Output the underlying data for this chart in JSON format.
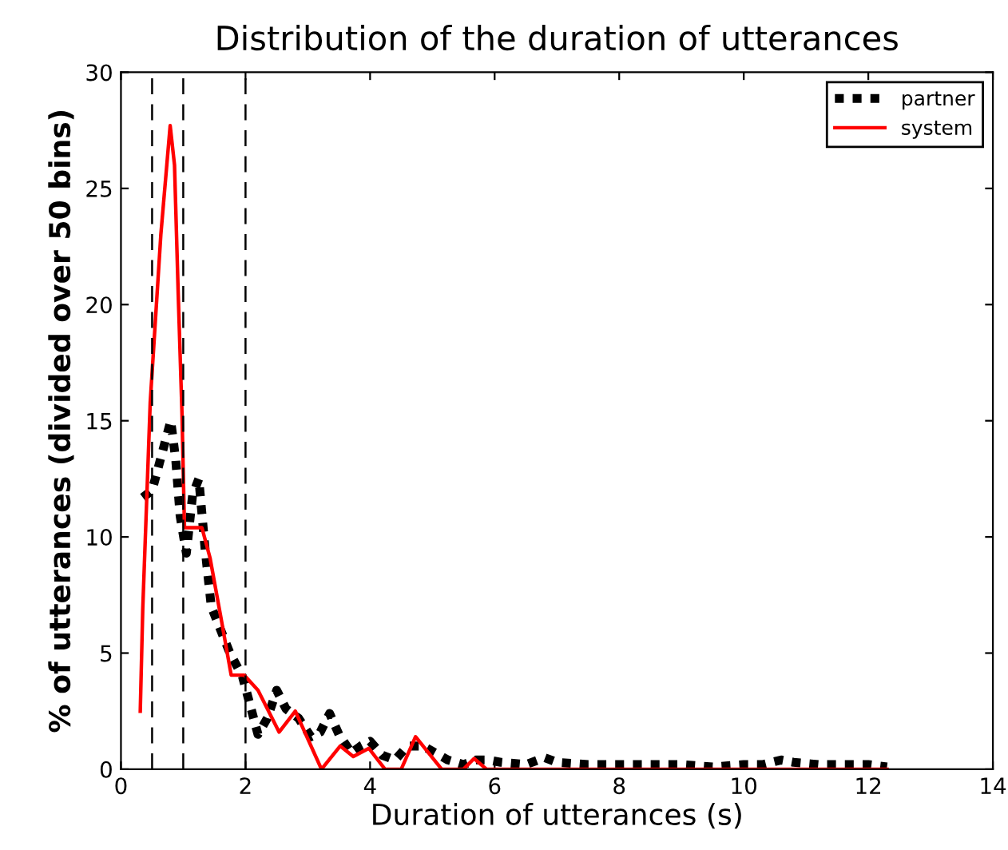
{
  "chart_data": {
    "type": "line",
    "title": "Distribution of the duration of utterances",
    "xlabel": "Duration of utterances (s)",
    "ylabel": "% of utterances (divided over 50 bins)",
    "xlim": [
      0,
      14
    ],
    "ylim": [
      0,
      30
    ],
    "xticks": [
      0,
      2,
      4,
      6,
      8,
      10,
      12,
      14
    ],
    "yticks": [
      0,
      5,
      10,
      15,
      20,
      25,
      30
    ],
    "grid": false,
    "legend": "top right",
    "ref_lines": [
      {
        "axis": "x",
        "value": 0.5,
        "color": "#000000",
        "line_style": "dashed"
      },
      {
        "axis": "x",
        "value": 1,
        "color": "#000000",
        "line_style": "dashed"
      },
      {
        "axis": "x",
        "value": 2,
        "color": "#000000",
        "line_style": "dashed"
      }
    ],
    "series": [
      {
        "name": "partner",
        "color": "#000000",
        "line_style": "dotted",
        "x": [
          0.35,
          0.5,
          0.6,
          0.7,
          0.8,
          0.88,
          0.95,
          1.05,
          1.15,
          1.25,
          1.35,
          1.45,
          1.6,
          1.75,
          1.95,
          2.1,
          2.2,
          2.35,
          2.5,
          2.65,
          2.85,
          3.05,
          3.2,
          3.35,
          3.5,
          3.7,
          3.85,
          4.0,
          4.2,
          4.4,
          4.6,
          4.85,
          5.05,
          5.25,
          5.5,
          5.7,
          5.9,
          6.1,
          6.5,
          6.8,
          7.0,
          7.5,
          8.0,
          8.5,
          9.0,
          9.5,
          10.0,
          10.3,
          10.6,
          10.8,
          11.2,
          11.6,
          12.0,
          12.3
        ],
        "values": [
          11.7,
          12,
          13,
          14,
          15,
          13.3,
          10.9,
          9.3,
          11.8,
          12.5,
          9.5,
          7,
          6,
          5,
          4,
          2.5,
          1.5,
          2.2,
          3.4,
          2.6,
          2.2,
          1.4,
          1.6,
          2.4,
          1.5,
          0.7,
          1.0,
          1.2,
          0.6,
          0.4,
          1.0,
          1.0,
          0.7,
          0.4,
          0.2,
          0.4,
          0.4,
          0.3,
          0.2,
          0.5,
          0.3,
          0.2,
          0.2,
          0.2,
          0.2,
          0.1,
          0.2,
          0.2,
          0.4,
          0.3,
          0.2,
          0.2,
          0.2,
          0.1
        ]
      },
      {
        "name": "system",
        "color": "#ff0000",
        "line_style": "solid",
        "x": [
          0.31,
          0.35,
          0.47,
          0.64,
          0.79,
          0.86,
          0.92,
          0.98,
          1.02,
          1.3,
          1.43,
          1.6,
          1.77,
          1.98,
          2.2,
          2.54,
          2.8,
          3.22,
          3.52,
          3.73,
          3.98,
          4.24,
          4.5,
          4.73,
          5.0,
          5.15,
          5.5,
          5.67,
          5.87,
          12.3
        ],
        "values": [
          2.5,
          6.9,
          15.8,
          23,
          27.7,
          26,
          20.4,
          15.3,
          10.4,
          10.4,
          9.1,
          6.6,
          4.05,
          4.05,
          3.4,
          1.6,
          2.5,
          0,
          1.0,
          0.55,
          0.9,
          0,
          0,
          1.4,
          0.5,
          0,
          0,
          0.46,
          0,
          0
        ]
      }
    ]
  }
}
